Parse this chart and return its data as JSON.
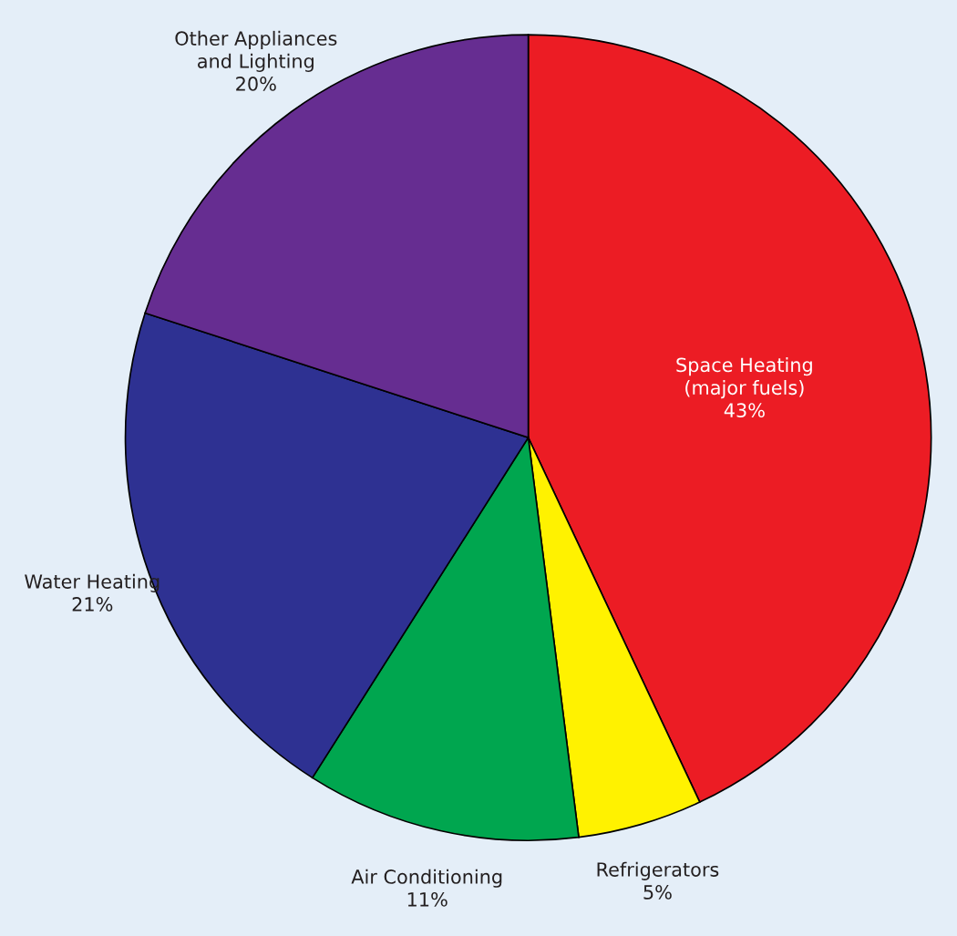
{
  "chart_data": {
    "type": "pie",
    "categories": [
      "Space Heating\n(major fuels)",
      "Refrigerators",
      "Air Conditioning",
      "Water Heating",
      "Other Appliances\nand Lighting"
    ],
    "values": [
      43,
      5,
      11,
      21,
      20
    ],
    "colors": [
      "#ec1c24",
      "#fff200",
      "#00a64f",
      "#2e3192",
      "#662d91"
    ],
    "value_labels": [
      "43%",
      "5%",
      "11%",
      "21%",
      "20%"
    ]
  }
}
